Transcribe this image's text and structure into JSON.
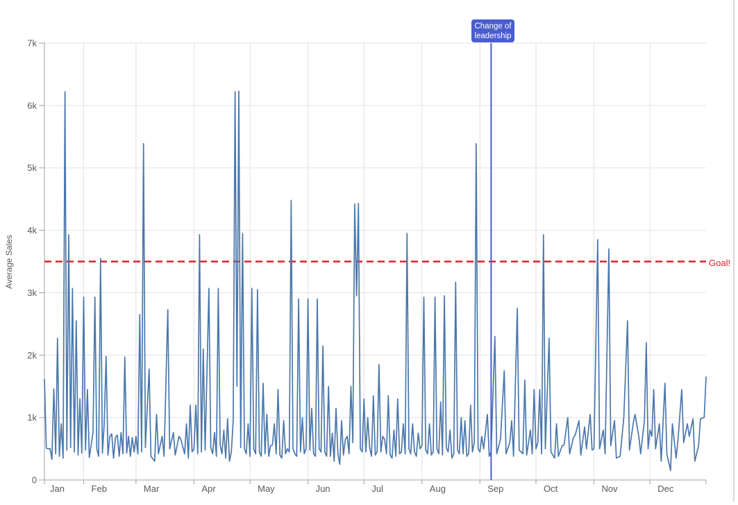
{
  "chart_data": {
    "type": "line",
    "ylabel": "Average Sales",
    "xlabel": "",
    "y_ticks": [
      "0",
      "1k",
      "2k",
      "3k",
      "4k",
      "5k",
      "6k",
      "7k"
    ],
    "ylim": [
      0,
      7000
    ],
    "x_months": [
      "Jan",
      "Feb",
      "Mar",
      "Apr",
      "May",
      "Jun",
      "Jul",
      "Aug",
      "Sep",
      "Oct",
      "Nov",
      "Dec"
    ],
    "month_start_days": [
      1,
      32,
      60,
      91,
      121,
      152,
      182,
      213,
      244,
      274,
      305,
      335
    ],
    "x_domain_days": [
      11,
      365
    ],
    "grid": true,
    "legend": false,
    "reference_lines": [
      {
        "type": "horizontal",
        "value": 3500,
        "label": "Goal!",
        "style": "dashed"
      },
      {
        "type": "vertical",
        "day": 250,
        "label_line1": "Change of",
        "label_line2": "leadership",
        "style": "solid"
      }
    ],
    "series": [
      {
        "name": "Average Sales",
        "points": [
          [
            11,
            1611
          ],
          [
            12,
            510
          ],
          [
            13,
            500
          ],
          [
            14,
            505
          ],
          [
            15,
            330
          ],
          [
            16,
            1460
          ],
          [
            17,
            420
          ],
          [
            18,
            2270
          ],
          [
            19,
            380
          ],
          [
            20,
            900
          ],
          [
            21,
            350
          ],
          [
            22,
            6220
          ],
          [
            23,
            480
          ],
          [
            24,
            3930
          ],
          [
            25,
            520
          ],
          [
            26,
            3070
          ],
          [
            27,
            450
          ],
          [
            28,
            2550
          ],
          [
            29,
            400
          ],
          [
            30,
            1300
          ],
          [
            31,
            430
          ],
          [
            32,
            2930
          ],
          [
            33,
            480
          ],
          [
            34,
            1450
          ],
          [
            35,
            360
          ],
          [
            37,
            760
          ],
          [
            38,
            2930
          ],
          [
            39,
            500
          ],
          [
            40,
            380
          ],
          [
            41,
            3550
          ],
          [
            42,
            430
          ],
          [
            43,
            900
          ],
          [
            44,
            1980
          ],
          [
            45,
            400
          ],
          [
            46,
            700
          ],
          [
            47,
            740
          ],
          [
            48,
            350
          ],
          [
            49,
            680
          ],
          [
            50,
            720
          ],
          [
            51,
            380
          ],
          [
            52,
            760
          ],
          [
            53,
            420
          ],
          [
            54,
            1970
          ],
          [
            55,
            430
          ],
          [
            56,
            700
          ],
          [
            57,
            380
          ],
          [
            58,
            680
          ],
          [
            59,
            450
          ],
          [
            60,
            700
          ],
          [
            61,
            420
          ],
          [
            62,
            2650
          ],
          [
            63,
            450
          ],
          [
            64,
            5390
          ],
          [
            65,
            520
          ],
          [
            67,
            1780
          ],
          [
            68,
            380
          ],
          [
            70,
            300
          ],
          [
            71,
            1050
          ],
          [
            72,
            420
          ],
          [
            74,
            700
          ],
          [
            75,
            380
          ],
          [
            77,
            2730
          ],
          [
            78,
            500
          ],
          [
            80,
            760
          ],
          [
            81,
            400
          ],
          [
            83,
            700
          ],
          [
            84,
            650
          ],
          [
            86,
            420
          ],
          [
            87,
            900
          ],
          [
            88,
            350
          ],
          [
            89,
            1200
          ],
          [
            90,
            450
          ],
          [
            91,
            500
          ],
          [
            92,
            1200
          ],
          [
            93,
            420
          ],
          [
            94,
            3930
          ],
          [
            95,
            450
          ],
          [
            96,
            2100
          ],
          [
            97,
            480
          ],
          [
            99,
            3070
          ],
          [
            100,
            520
          ],
          [
            101,
            420
          ],
          [
            102,
            760
          ],
          [
            103,
            380
          ],
          [
            104,
            3070
          ],
          [
            105,
            560
          ],
          [
            106,
            420
          ],
          [
            107,
            800
          ],
          [
            108,
            350
          ],
          [
            109,
            980
          ],
          [
            110,
            300
          ],
          [
            111,
            450
          ],
          [
            112,
            950
          ],
          [
            113,
            6220
          ],
          [
            114,
            1500
          ],
          [
            115,
            6230
          ],
          [
            116,
            520
          ],
          [
            117,
            3950
          ],
          [
            118,
            500
          ],
          [
            119,
            420
          ],
          [
            120,
            900
          ],
          [
            121,
            380
          ],
          [
            122,
            3070
          ],
          [
            123,
            500
          ],
          [
            124,
            420
          ],
          [
            125,
            3050
          ],
          [
            126,
            450
          ],
          [
            127,
            380
          ],
          [
            128,
            1550
          ],
          [
            129,
            420
          ],
          [
            130,
            1050
          ],
          [
            131,
            380
          ],
          [
            132,
            550
          ],
          [
            133,
            560
          ],
          [
            134,
            900
          ],
          [
            135,
            420
          ],
          [
            136,
            1450
          ],
          [
            137,
            400
          ],
          [
            138,
            350
          ],
          [
            139,
            950
          ],
          [
            140,
            420
          ],
          [
            141,
            500
          ],
          [
            142,
            450
          ],
          [
            143,
            4480
          ],
          [
            144,
            500
          ],
          [
            145,
            420
          ],
          [
            146,
            380
          ],
          [
            147,
            2900
          ],
          [
            148,
            450
          ],
          [
            149,
            1000
          ],
          [
            150,
            420
          ],
          [
            151,
            500
          ],
          [
            152,
            2900
          ],
          [
            153,
            480
          ],
          [
            154,
            1150
          ],
          [
            155,
            420
          ],
          [
            156,
            380
          ],
          [
            157,
            2900
          ],
          [
            158,
            500
          ],
          [
            159,
            450
          ],
          [
            160,
            2150
          ],
          [
            161,
            450
          ],
          [
            162,
            380
          ],
          [
            163,
            1500
          ],
          [
            164,
            380
          ],
          [
            165,
            750
          ],
          [
            166,
            300
          ],
          [
            167,
            1150
          ],
          [
            168,
            420
          ],
          [
            169,
            250
          ],
          [
            170,
            950
          ],
          [
            171,
            400
          ],
          [
            172,
            650
          ],
          [
            173,
            700
          ],
          [
            174,
            420
          ],
          [
            175,
            1500
          ],
          [
            176,
            600
          ],
          [
            177,
            4420
          ],
          [
            178,
            2950
          ],
          [
            179,
            4430
          ],
          [
            180,
            500
          ],
          [
            181,
            450
          ],
          [
            182,
            1300
          ],
          [
            183,
            450
          ],
          [
            184,
            1000
          ],
          [
            185,
            520
          ],
          [
            186,
            380
          ],
          [
            187,
            1350
          ],
          [
            188,
            400
          ],
          [
            189,
            450
          ],
          [
            190,
            1850
          ],
          [
            191,
            450
          ],
          [
            192,
            700
          ],
          [
            193,
            650
          ],
          [
            194,
            420
          ],
          [
            195,
            1350
          ],
          [
            196,
            400
          ],
          [
            197,
            350
          ],
          [
            198,
            800
          ],
          [
            199,
            380
          ],
          [
            200,
            1300
          ],
          [
            201,
            420
          ],
          [
            202,
            450
          ],
          [
            203,
            900
          ],
          [
            204,
            420
          ],
          [
            205,
            3950
          ],
          [
            206,
            500
          ],
          [
            207,
            420
          ],
          [
            208,
            900
          ],
          [
            209,
            450
          ],
          [
            210,
            380
          ],
          [
            211,
            750
          ],
          [
            212,
            500
          ],
          [
            213,
            550
          ],
          [
            214,
            2930
          ],
          [
            215,
            480
          ],
          [
            216,
            420
          ],
          [
            217,
            900
          ],
          [
            218,
            400
          ],
          [
            219,
            450
          ],
          [
            220,
            2930
          ],
          [
            221,
            500
          ],
          [
            222,
            420
          ],
          [
            223,
            1250
          ],
          [
            224,
            400
          ],
          [
            225,
            2950
          ],
          [
            226,
            520
          ],
          [
            227,
            450
          ],
          [
            228,
            800
          ],
          [
            229,
            350
          ],
          [
            230,
            420
          ],
          [
            231,
            3170
          ],
          [
            232,
            480
          ],
          [
            233,
            420
          ],
          [
            234,
            1000
          ],
          [
            235,
            420
          ],
          [
            236,
            950
          ],
          [
            237,
            380
          ],
          [
            238,
            420
          ],
          [
            239,
            1200
          ],
          [
            240,
            450
          ],
          [
            241,
            600
          ],
          [
            242,
            5390
          ],
          [
            243,
            500
          ],
          [
            244,
            450
          ],
          [
            245,
            700
          ],
          [
            246,
            500
          ],
          [
            248,
            1050
          ],
          [
            249,
            380
          ],
          [
            250,
            450
          ],
          [
            252,
            2300
          ],
          [
            253,
            420
          ],
          [
            255,
            650
          ],
          [
            257,
            1750
          ],
          [
            258,
            420
          ],
          [
            260,
            600
          ],
          [
            261,
            950
          ],
          [
            262,
            380
          ],
          [
            264,
            2750
          ],
          [
            265,
            480
          ],
          [
            267,
            420
          ],
          [
            268,
            1600
          ],
          [
            269,
            400
          ],
          [
            271,
            800
          ],
          [
            272,
            420
          ],
          [
            273,
            1450
          ],
          [
            274,
            500
          ],
          [
            275,
            600
          ],
          [
            276,
            1450
          ],
          [
            277,
            420
          ],
          [
            278,
            3930
          ],
          [
            279,
            500
          ],
          [
            281,
            2270
          ],
          [
            282,
            450
          ],
          [
            284,
            350
          ],
          [
            285,
            900
          ],
          [
            286,
            380
          ],
          [
            288,
            550
          ],
          [
            289,
            560
          ],
          [
            291,
            1000
          ],
          [
            292,
            420
          ],
          [
            294,
            680
          ],
          [
            295,
            720
          ],
          [
            297,
            950
          ],
          [
            298,
            400
          ],
          [
            300,
            850
          ],
          [
            301,
            500
          ],
          [
            303,
            1050
          ],
          [
            304,
            480
          ],
          [
            305,
            500
          ],
          [
            307,
            3850
          ],
          [
            308,
            500
          ],
          [
            310,
            800
          ],
          [
            311,
            420
          ],
          [
            313,
            3700
          ],
          [
            314,
            550
          ],
          [
            316,
            950
          ],
          [
            317,
            350
          ],
          [
            319,
            380
          ],
          [
            321,
            1000
          ],
          [
            323,
            2550
          ],
          [
            324,
            480
          ],
          [
            326,
            900
          ],
          [
            327,
            1050
          ],
          [
            329,
            700
          ],
          [
            330,
            420
          ],
          [
            332,
            950
          ],
          [
            333,
            2200
          ],
          [
            334,
            500
          ],
          [
            335,
            800
          ],
          [
            336,
            700
          ],
          [
            337,
            1450
          ],
          [
            338,
            500
          ],
          [
            340,
            900
          ],
          [
            341,
            300
          ],
          [
            343,
            1550
          ],
          [
            344,
            420
          ],
          [
            346,
            150
          ],
          [
            347,
            900
          ],
          [
            349,
            350
          ],
          [
            350,
            650
          ],
          [
            352,
            1450
          ],
          [
            353,
            600
          ],
          [
            355,
            900
          ],
          [
            356,
            700
          ],
          [
            358,
            980
          ],
          [
            359,
            300
          ],
          [
            361,
            550
          ],
          [
            362,
            980
          ],
          [
            364,
            1000
          ],
          [
            365,
            1650
          ]
        ]
      }
    ]
  },
  "badge": {
    "line1": "Change of",
    "line2": "leadership"
  },
  "goal_label": "Goal!",
  "colors": {
    "series_line": "#4a77ab",
    "goal_red": "#e01f26",
    "reference_blue": "#495cd0",
    "gridline": "#e2e2e2",
    "axis_line": "#a0a0a0",
    "tick_text": "#595959"
  }
}
